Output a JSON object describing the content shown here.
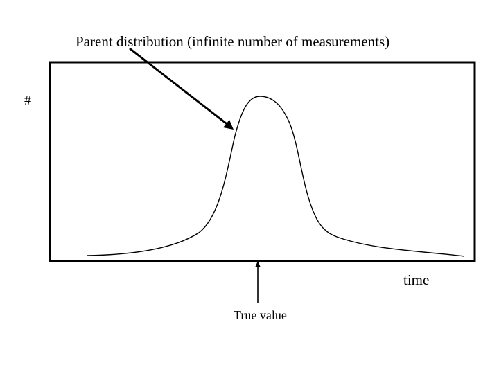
{
  "diagram": {
    "title_annotation": "Parent distribution (infinite number of measurements)",
    "y_axis_label": "#",
    "x_axis_label": "time",
    "marker_label": "True value"
  },
  "colors": {
    "ink": "#000000",
    "background": "#ffffff"
  }
}
